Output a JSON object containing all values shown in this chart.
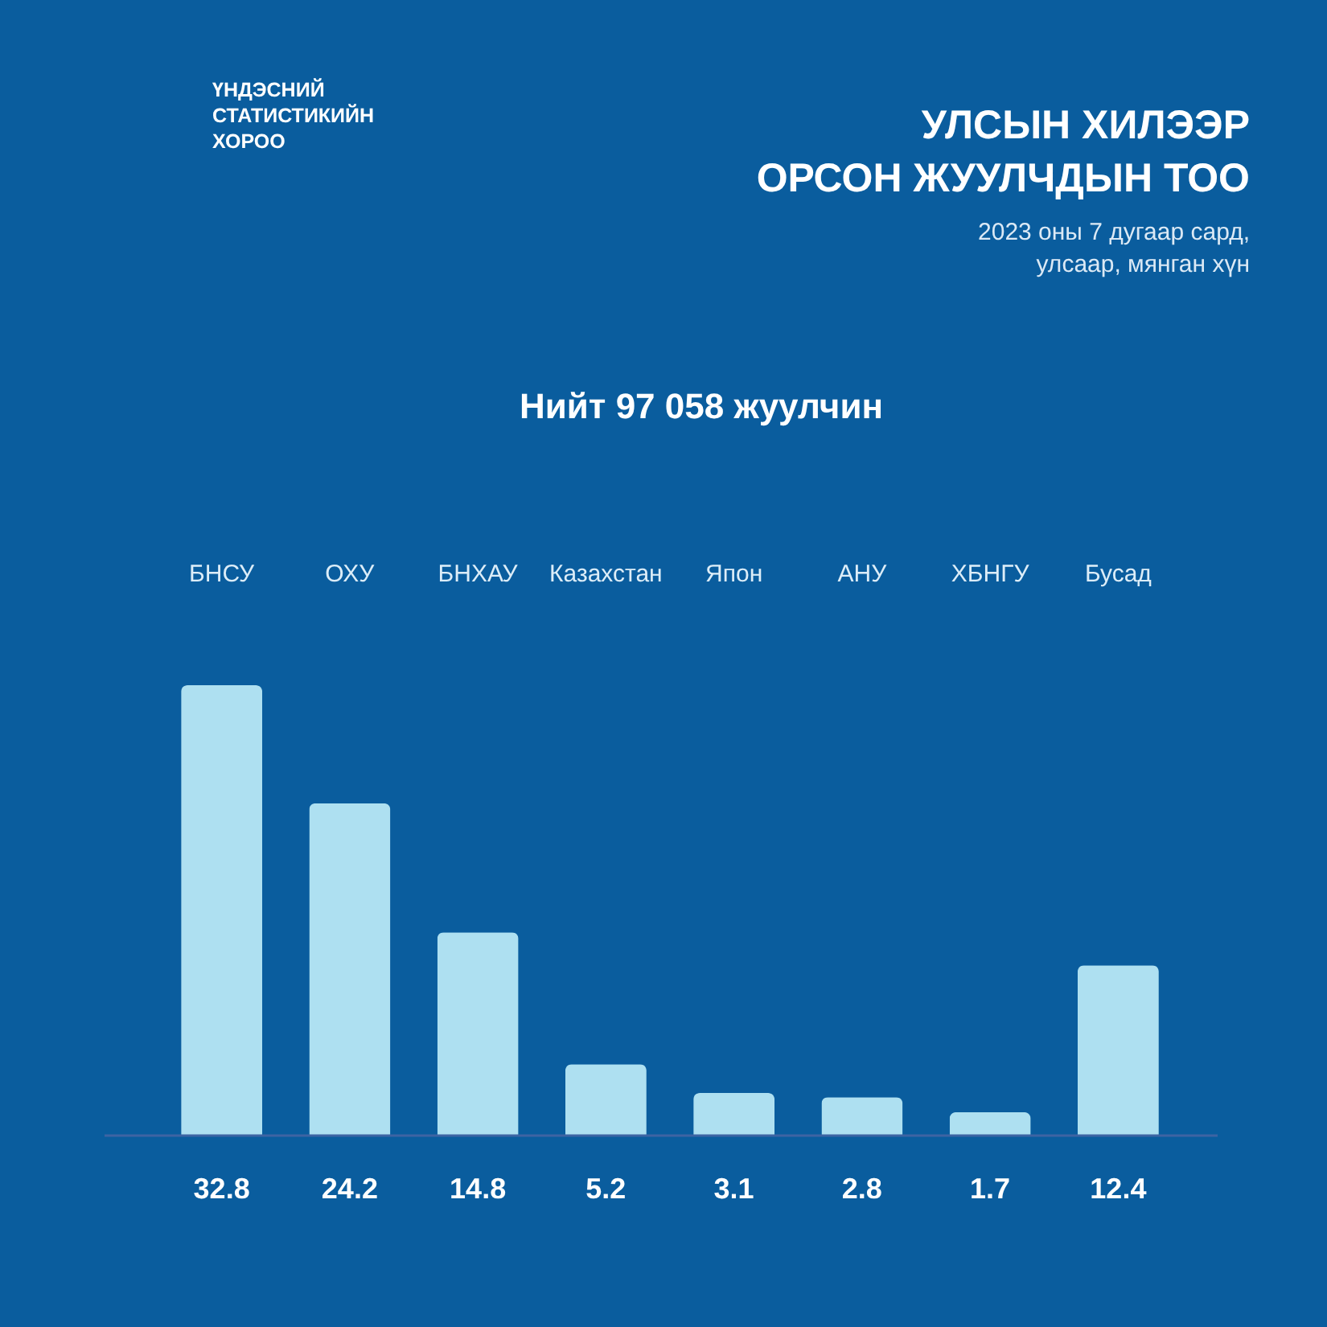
{
  "chart_data": {
    "type": "bar",
    "title": "УЛСЫН ХИЛЭЭР\nОРСОН ЖУУЛЧДЫН ТОО",
    "subtitle": "2023 оны 7 дугаар сард,\nулсаар, мянган хүн",
    "annotations": [
      "ҮНДЭСНИЙ\nСТАТИСТИКИЙН\nХОРОО",
      "Нийт 97 058 жуулчин"
    ],
    "categories": [
      "БНСУ",
      "ОХУ",
      "БНХАУ",
      "Казахстан",
      "Япон",
      "АНУ",
      "ХБНГУ",
      "Бусад"
    ],
    "values": [
      32.8,
      24.2,
      14.8,
      5.2,
      3.1,
      2.8,
      1.7,
      12.4
    ],
    "color": "#aee0f1",
    "data_labels": true,
    "tick_labels": "x"
  }
}
